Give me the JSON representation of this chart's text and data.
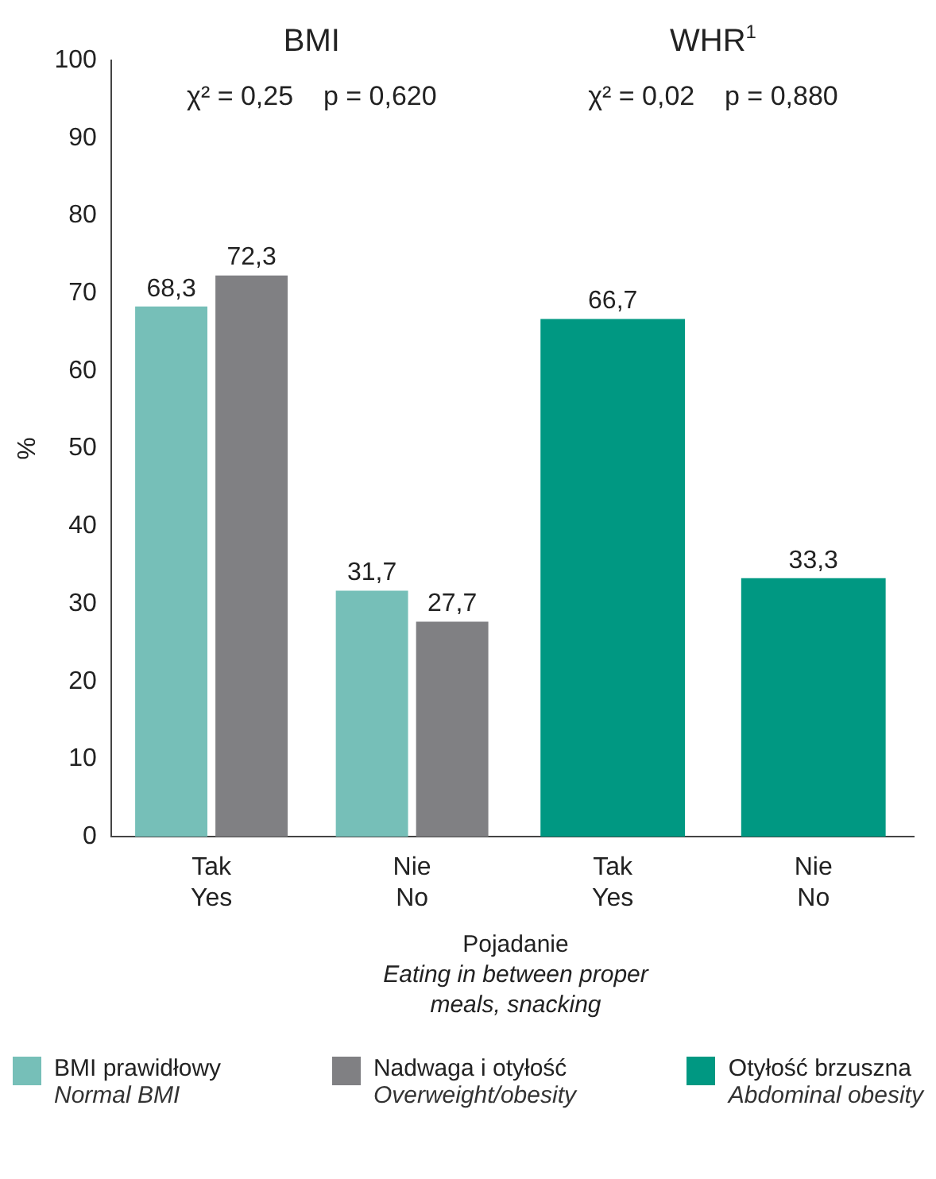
{
  "chart_data": {
    "type": "bar",
    "xlabel": "Pojadanie\nEating in between proper\nmeals, snacking",
    "ylabel": "%",
    "categories": [
      "Tak\nYes",
      "Nie\nNo",
      "Tak\nYes",
      "Nie\nNo"
    ],
    "series": [
      {
        "name": "BMI prawidłowy\nNormal BMI",
        "color": "#76bfb8",
        "values": [
          68.3,
          31.7,
          null,
          null
        ],
        "value_labels": [
          "68,3",
          "31,7",
          null,
          null
        ]
      },
      {
        "name": "Nadwaga i otyłość\nOverweight/obesity",
        "color": "#808083",
        "values": [
          72.3,
          27.7,
          null,
          null
        ],
        "value_labels": [
          "72,3",
          "27,7",
          null,
          null
        ]
      },
      {
        "name": "Otyłość brzuszna\nAbdominal obesity",
        "color": "#009882",
        "values": [
          null,
          null,
          66.7,
          33.3
        ],
        "value_labels": [
          null,
          null,
          "66,7",
          "33,3"
        ]
      }
    ],
    "annotations": [
      "BMI",
      "χ² = 0,25    p = 0,620",
      "WHR$^{1}$",
      "χ² = 0,02    p = 0,880"
    ],
    "ylim": [
      0,
      100
    ],
    "yticks": [
      0,
      10,
      20,
      30,
      40,
      50,
      60,
      70,
      80,
      90,
      100
    ],
    "grid": false,
    "legend": "bottom"
  }
}
